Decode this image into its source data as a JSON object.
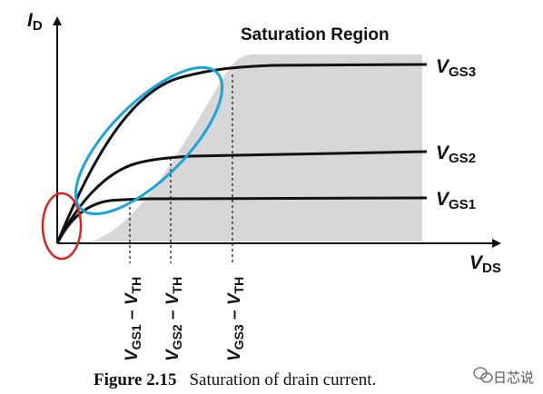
{
  "figure": {
    "region_label": "Saturation Region",
    "axis_y": {
      "main": "I",
      "sub": "D"
    },
    "axis_x": {
      "main": "V",
      "sub": "DS"
    },
    "curves": [
      {
        "main": "V",
        "sub": "GS3"
      },
      {
        "main": "V",
        "sub": "GS2"
      },
      {
        "main": "V",
        "sub": "GS1"
      }
    ],
    "tick_labels": [
      {
        "v": "V",
        "s1": "GS1",
        "minus": " – ",
        "v2": "V",
        "s2": "TH"
      },
      {
        "v": "V",
        "s1": "GS2",
        "minus": " – ",
        "v2": "V",
        "s2": "TH"
      },
      {
        "v": "V",
        "s1": "GS3",
        "minus": " – ",
        "v2": "V",
        "s2": "TH"
      }
    ],
    "caption": {
      "number": "Figure 2.15",
      "text": "Saturation of drain current."
    },
    "watermark": "日芯说",
    "colors": {
      "region_fill": "#d7d7d7",
      "curve": "#111111",
      "highlight_origin": "#e0201b",
      "highlight_triode": "#1aa3dc"
    }
  }
}
